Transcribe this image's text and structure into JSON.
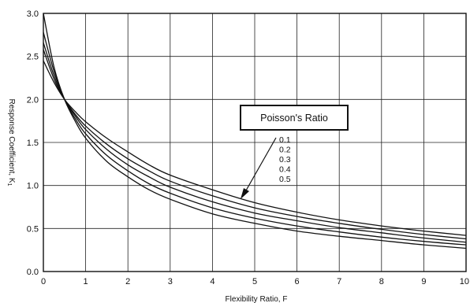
{
  "chart_data": {
    "type": "line",
    "xlabel": "Flexibility Ratio, F",
    "ylabel": "Response Coefficient, K",
    "ylabel_subscript": "1",
    "xlim": [
      0,
      10
    ],
    "ylim": [
      0,
      3.0
    ],
    "x_ticks": [
      "0",
      "1",
      "2",
      "3",
      "4",
      "5",
      "6",
      "7",
      "8",
      "9",
      "10"
    ],
    "y_ticks": [
      "0.0",
      "0.5",
      "1.0",
      "1.5",
      "2.0",
      "2.5",
      "3.0"
    ],
    "grid": true,
    "legend": {
      "title": "Poisson's Ratio",
      "entries": [
        "0.1",
        "0.2",
        "0.3",
        "0.4",
        "0.5"
      ],
      "placement": "center-right, arrow pointing to curves"
    },
    "x": [
      0,
      0.25,
      0.5,
      0.75,
      1,
      1.5,
      2,
      2.5,
      3,
      4,
      5,
      6,
      7,
      8,
      9,
      10
    ],
    "series": [
      {
        "values": [
          2.45,
          2.2,
          2.0,
          1.86,
          1.74,
          1.55,
          1.39,
          1.24,
          1.12,
          0.95,
          0.8,
          0.69,
          0.6,
          0.53,
          0.47,
          0.42
        ]
      },
      {
        "values": [
          2.58,
          2.24,
          2.0,
          1.83,
          1.69,
          1.48,
          1.31,
          1.17,
          1.05,
          0.88,
          0.74,
          0.64,
          0.56,
          0.49,
          0.43,
          0.38
        ]
      },
      {
        "values": [
          2.66,
          2.28,
          2.0,
          1.81,
          1.65,
          1.42,
          1.24,
          1.1,
          0.98,
          0.81,
          0.68,
          0.59,
          0.51,
          0.45,
          0.39,
          0.34
        ]
      },
      {
        "values": [
          2.78,
          2.33,
          2.0,
          1.78,
          1.6,
          1.35,
          1.17,
          1.02,
          0.91,
          0.74,
          0.62,
          0.53,
          0.46,
          0.4,
          0.35,
          0.31
        ]
      },
      {
        "values": [
          3.0,
          2.38,
          2.0,
          1.75,
          1.55,
          1.28,
          1.1,
          0.95,
          0.84,
          0.67,
          0.56,
          0.47,
          0.41,
          0.36,
          0.31,
          0.27
        ]
      }
    ]
  }
}
